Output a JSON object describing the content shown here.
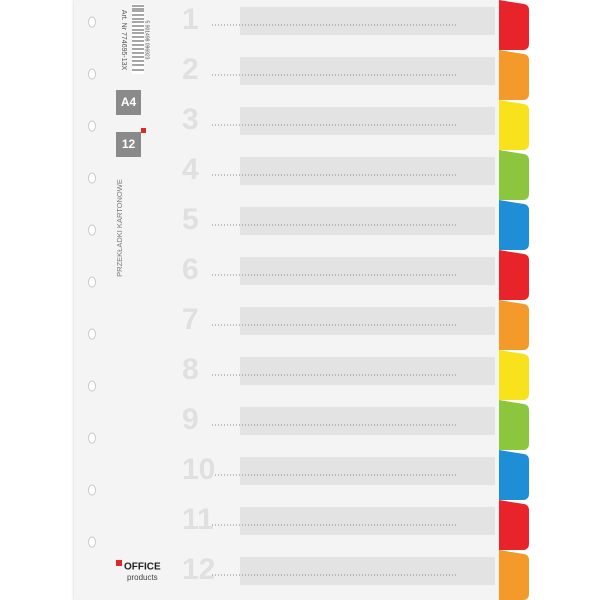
{
  "article_number": "Art. Nr 774695-13X",
  "barcode_number": "5 901498 096923",
  "format": "A4",
  "count": "12",
  "product_name": "PRZEKŁADKI KARTONOWE",
  "brand": {
    "line1": "OFFICE",
    "line2": "products"
  },
  "tabs": [
    "1",
    "2",
    "3",
    "4",
    "5",
    "6",
    "7",
    "8",
    "9",
    "10",
    "11",
    "12"
  ]
}
